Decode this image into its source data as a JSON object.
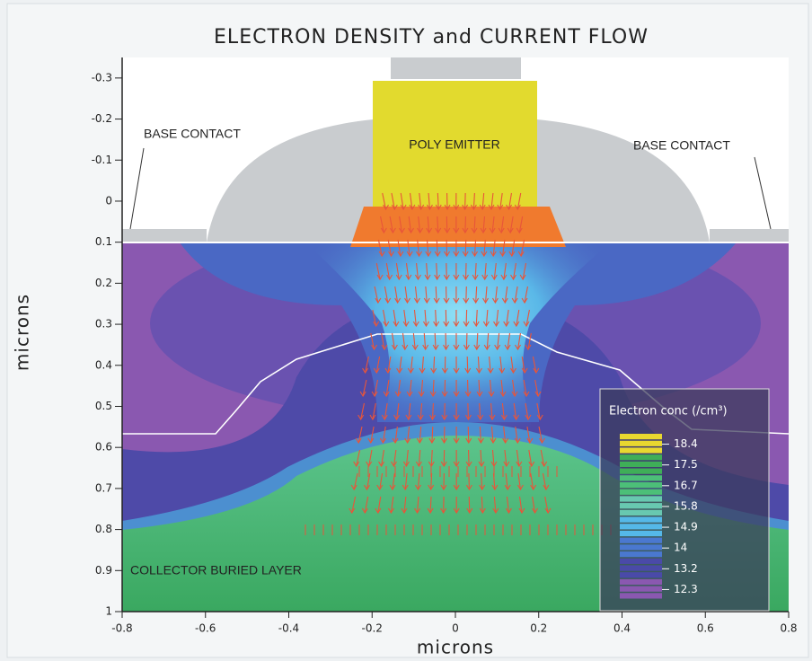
{
  "chart_data": {
    "type": "contour",
    "title": "ELECTRON DENSITY and CURRENT FLOW",
    "xlabel": "microns",
    "ylabel": "microns",
    "xlim": [
      -0.8,
      0.8
    ],
    "xticks": [
      -0.8,
      -0.6,
      -0.4,
      -0.2,
      0,
      0.2,
      0.4,
      0.6,
      0.8
    ],
    "ylim": [
      -0.35,
      1
    ],
    "y_inverted": true,
    "yticks": [
      -0.3,
      -0.2,
      -0.1,
      0,
      0.1,
      0.2,
      0.3,
      0.4,
      0.5,
      0.6,
      0.7,
      0.8,
      0.9,
      1
    ],
    "annotations": [
      "BASE CONTACT",
      "POLY EMITTER",
      "BASE CONTACT",
      "COLLECTOR BURIED LAYER"
    ],
    "colorbar": {
      "title": "Electron conc (/cm³)",
      "ticks": [
        18.4,
        17.5,
        16.7,
        15.8,
        14.9,
        14,
        13.2,
        12.3
      ],
      "colors": [
        "#e8d830",
        "#3fae58",
        "#4cbf78",
        "#68c8b0",
        "#55b8e8",
        "#4a78d0",
        "#4a4aa8",
        "#8a58b0"
      ]
    }
  }
}
